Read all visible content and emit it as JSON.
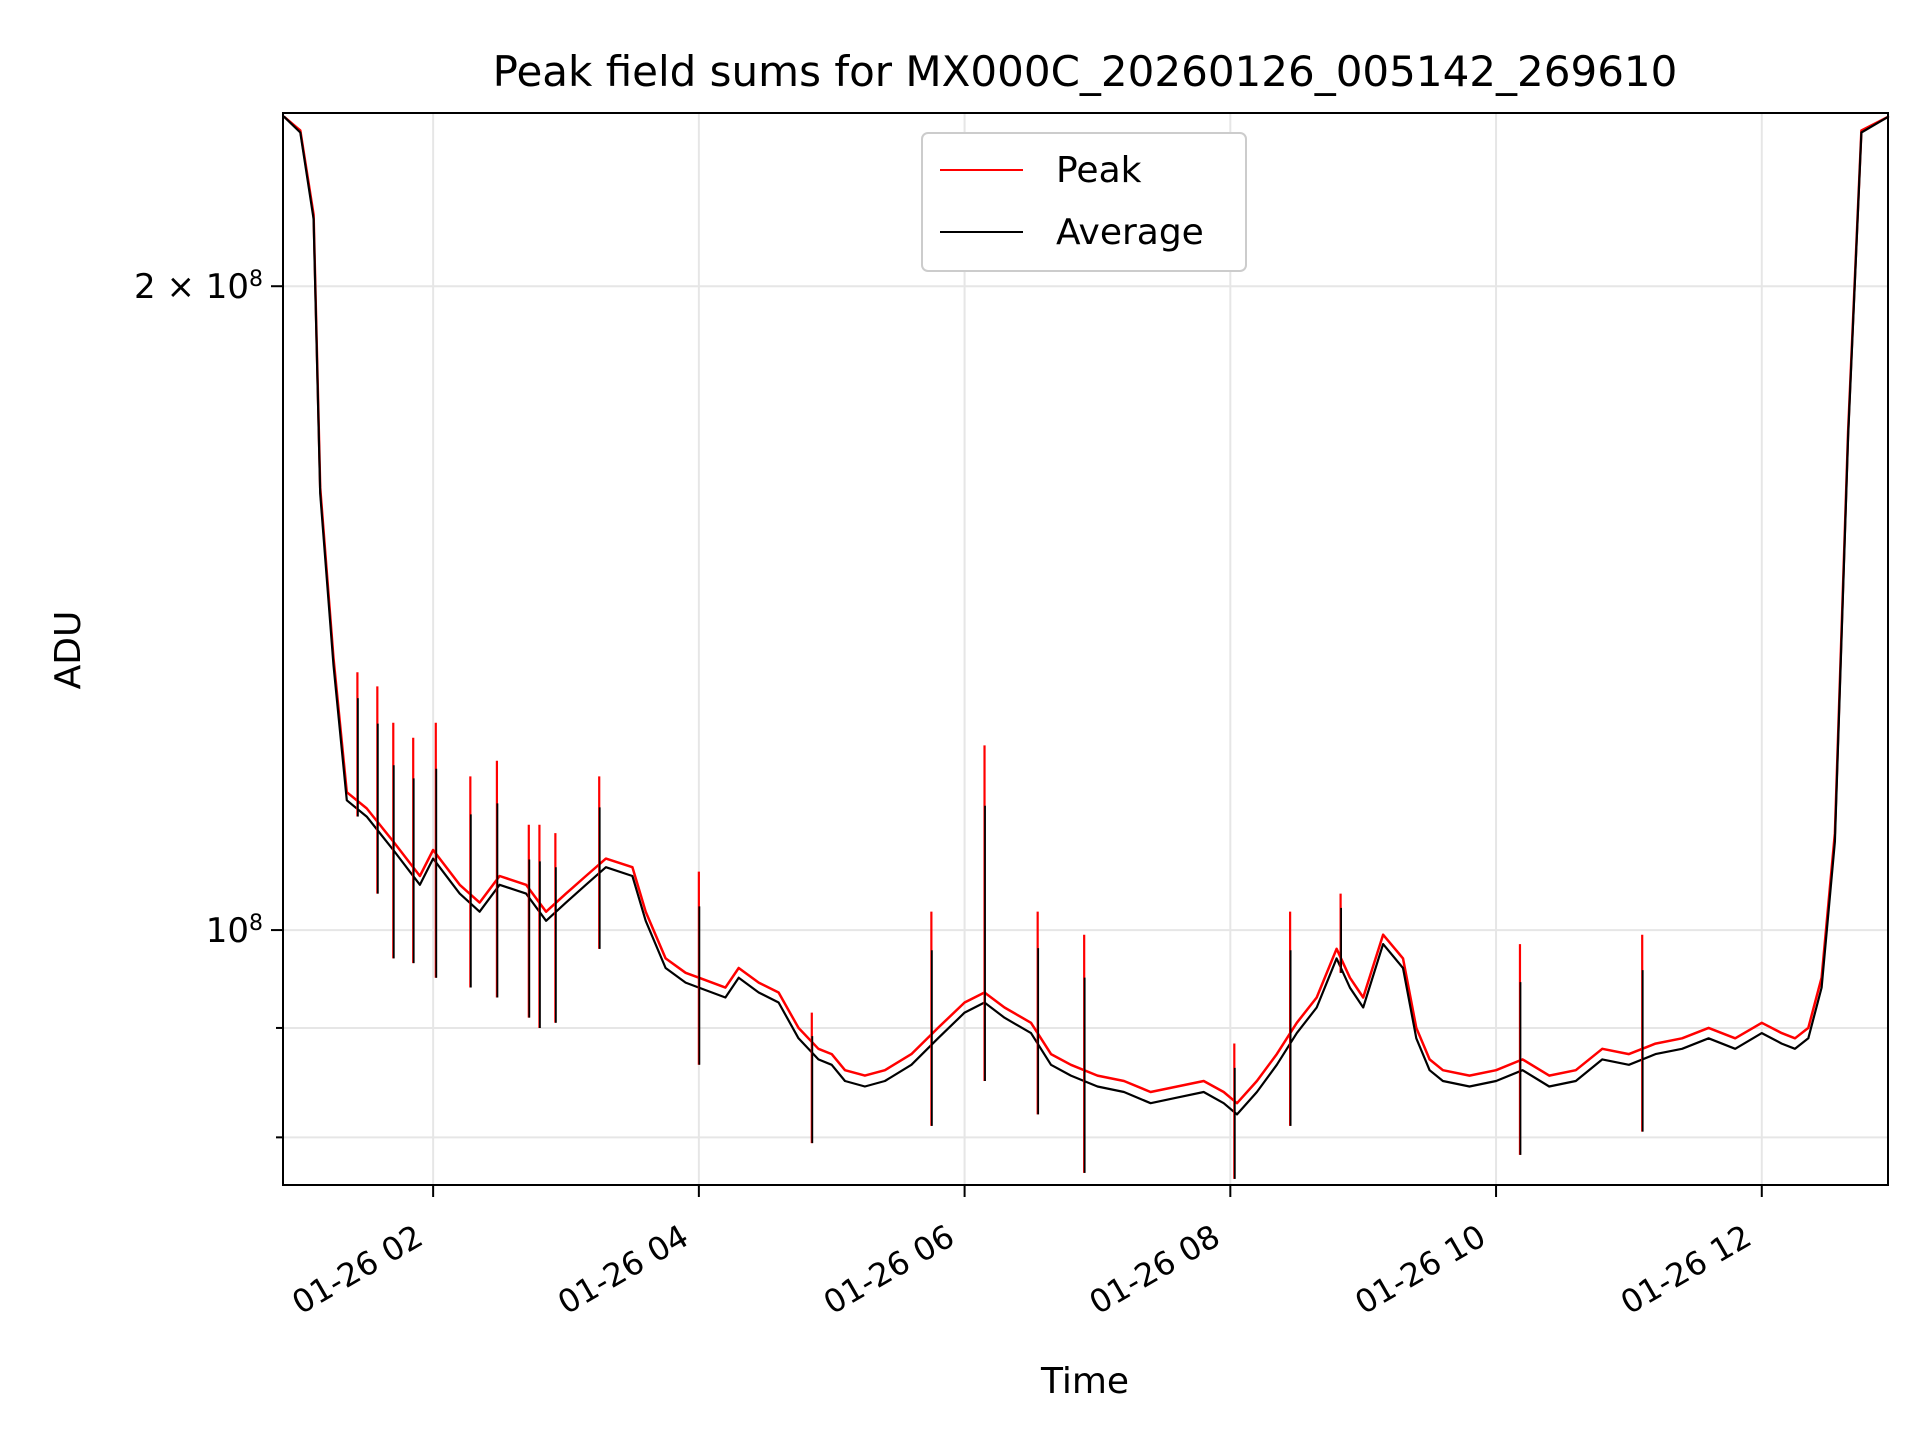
{
  "chart_data": {
    "type": "line",
    "title": "Peak field sums for MX000C_20260126_005142_269610",
    "xlabel": "Time",
    "ylabel": "ADU",
    "x_domain_hours": [
      0.87,
      12.95
    ],
    "y_scale": "log",
    "ylim": [
      76000000,
      241000000
    ],
    "grid": true,
    "legend_position": "upper-center",
    "x_ticks": [
      {
        "hour": 2,
        "label": "01-26 02"
      },
      {
        "hour": 4,
        "label": "01-26 04"
      },
      {
        "hour": 6,
        "label": "01-26 06"
      },
      {
        "hour": 8,
        "label": "01-26 08"
      },
      {
        "hour": 10,
        "label": "01-26 10"
      },
      {
        "hour": 12,
        "label": "01-26 12"
      }
    ],
    "y_ticks_major": [
      {
        "value": 100000000,
        "label_base": "10",
        "label_exp": "8"
      },
      {
        "value": 200000000,
        "label_base": "2 × 10",
        "label_exp": "8"
      }
    ],
    "y_ticks_minor": [
      80000000,
      90000000
    ],
    "x_hours": [
      0.88,
      1.0,
      1.1,
      1.15,
      1.25,
      1.35,
      1.5,
      1.7,
      1.9,
      2.0,
      2.2,
      2.35,
      2.5,
      2.7,
      2.85,
      3.0,
      3.15,
      3.3,
      3.5,
      3.6,
      3.75,
      3.9,
      4.0,
      4.2,
      4.3,
      4.45,
      4.6,
      4.75,
      4.9,
      5.0,
      5.1,
      5.25,
      5.4,
      5.6,
      5.8,
      6.0,
      6.15,
      6.3,
      6.5,
      6.65,
      6.8,
      7.0,
      7.2,
      7.4,
      7.6,
      7.8,
      7.95,
      8.05,
      8.2,
      8.35,
      8.5,
      8.65,
      8.8,
      8.9,
      9.0,
      9.15,
      9.3,
      9.4,
      9.5,
      9.6,
      9.8,
      10.0,
      10.2,
      10.4,
      10.6,
      10.8,
      11.0,
      11.2,
      11.4,
      11.6,
      11.8,
      12.0,
      12.15,
      12.25,
      12.35,
      12.45,
      12.55,
      12.65,
      12.75,
      12.95
    ],
    "series": [
      {
        "name": "Average",
        "color": "#000000",
        "values": [
          240000000,
          236000000,
          215000000,
          160000000,
          133000000,
          115000000,
          113000000,
          109000000,
          105000000,
          108000000,
          104000000,
          102000000,
          105000000,
          104000000,
          101000000,
          103000000,
          105000000,
          107000000,
          106000000,
          101000000,
          96000000,
          94500000,
          94000000,
          93000000,
          95000000,
          93500000,
          92500000,
          89000000,
          87000000,
          86500000,
          85000000,
          84500000,
          85000000,
          86500000,
          89000000,
          91500000,
          92500000,
          91000000,
          89500000,
          86500000,
          85500000,
          84500000,
          84000000,
          83000000,
          83500000,
          84000000,
          83000000,
          82000000,
          84000000,
          86500000,
          89500000,
          92000000,
          97000000,
          94000000,
          92000000,
          98500000,
          96000000,
          89000000,
          86000000,
          85000000,
          84500000,
          85000000,
          86000000,
          84500000,
          85000000,
          87000000,
          86500000,
          87500000,
          88000000,
          89000000,
          88000000,
          89500000,
          88500000,
          88000000,
          89000000,
          94000000,
          110000000,
          170000000,
          236000000,
          240000000
        ]
      },
      {
        "name": "Peak",
        "color": "#ff0000",
        "values": [
          240000000,
          236500000,
          216000000,
          161000000,
          134000000,
          116000000,
          114000000,
          110000000,
          106000000,
          109000000,
          105000000,
          103000000,
          106000000,
          105000000,
          102000000,
          104000000,
          106000000,
          108000000,
          107000000,
          102000000,
          97000000,
          95500000,
          95000000,
          94000000,
          96000000,
          94500000,
          93500000,
          90000000,
          88000000,
          87500000,
          86000000,
          85500000,
          86000000,
          87500000,
          90000000,
          92500000,
          93500000,
          92000000,
          90500000,
          87500000,
          86500000,
          85500000,
          85000000,
          84000000,
          84500000,
          85000000,
          84000000,
          83000000,
          85000000,
          87500000,
          90500000,
          93000000,
          98000000,
          95000000,
          93000000,
          99500000,
          97000000,
          90000000,
          87000000,
          86000000,
          85500000,
          86000000,
          87000000,
          85500000,
          86000000,
          88000000,
          87500000,
          88500000,
          89000000,
          90000000,
          89000000,
          90500000,
          89500000,
          89000000,
          90000000,
          95000000,
          111000000,
          171000000,
          236500000,
          240000000
        ]
      }
    ],
    "spikes": [
      {
        "hour": 1.43,
        "avg_low": 113000000,
        "peak_high": 132000000
      },
      {
        "hour": 1.58,
        "avg_low": 104000000,
        "peak_high": 130000000
      },
      {
        "hour": 1.7,
        "avg_low": 97000000,
        "peak_high": 125000000
      },
      {
        "hour": 1.85,
        "avg_low": 96500000,
        "peak_high": 123000000
      },
      {
        "hour": 2.02,
        "avg_low": 95000000,
        "peak_high": 125000000
      },
      {
        "hour": 2.28,
        "avg_low": 94000000,
        "peak_high": 118000000
      },
      {
        "hour": 2.48,
        "avg_low": 93000000,
        "peak_high": 120000000
      },
      {
        "hour": 2.72,
        "avg_low": 91000000,
        "peak_high": 112000000
      },
      {
        "hour": 2.8,
        "avg_low": 90000000,
        "peak_high": 112000000
      },
      {
        "hour": 2.92,
        "avg_low": 90500000,
        "peak_high": 111000000
      },
      {
        "hour": 3.25,
        "avg_low": 98000000,
        "peak_high": 118000000
      },
      {
        "hour": 4.0,
        "avg_low": 86500000,
        "peak_high": 106500000
      },
      {
        "hour": 4.85,
        "avg_low": 79500000,
        "peak_high": 91500000
      },
      {
        "hour": 5.75,
        "avg_low": 81000000,
        "peak_high": 102000000
      },
      {
        "hour": 6.15,
        "avg_low": 85000000,
        "peak_high": 122000000
      },
      {
        "hour": 6.55,
        "avg_low": 82000000,
        "peak_high": 102000000
      },
      {
        "hour": 6.9,
        "avg_low": 77000000,
        "peak_high": 99500000
      },
      {
        "hour": 8.03,
        "avg_low": 76500000,
        "peak_high": 88500000
      },
      {
        "hour": 8.45,
        "avg_low": 81000000,
        "peak_high": 102000000
      },
      {
        "hour": 8.83,
        "avg_low": 95500000,
        "peak_high": 104000000
      },
      {
        "hour": 10.18,
        "avg_low": 78500000,
        "peak_high": 98500000
      },
      {
        "hour": 11.1,
        "avg_low": 80500000,
        "peak_high": 99500000
      }
    ],
    "legend": [
      {
        "name": "Peak",
        "color": "#ff0000"
      },
      {
        "name": "Average",
        "color": "#000000"
      }
    ]
  }
}
